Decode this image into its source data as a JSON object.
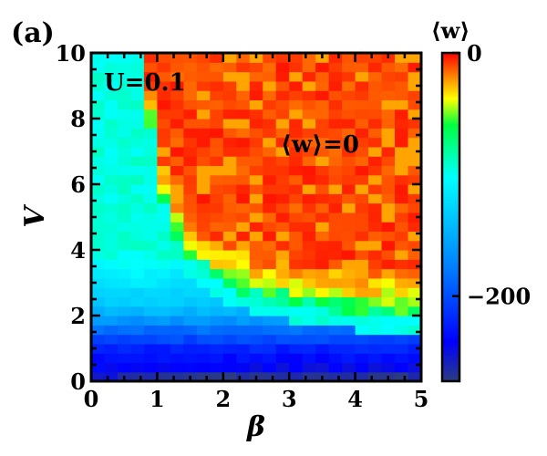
{
  "chart_data": {
    "type": "heatmap",
    "panel_label": "(a)",
    "xlabel": "β",
    "ylabel": "V",
    "xlim": [
      0,
      5
    ],
    "ylim": [
      0,
      10
    ],
    "x_ticks": [
      0,
      1,
      2,
      3,
      4,
      5
    ],
    "y_ticks": [
      0,
      2,
      4,
      6,
      8,
      10
    ],
    "grid": false,
    "annotations": [
      {
        "text": "U=0.1",
        "x": 0.2,
        "y": 9.1
      },
      {
        "text": "⟨w⟩=0",
        "x": 2.95,
        "y": 7.1
      }
    ],
    "nx": 25,
    "ny": 35,
    "phase_boundary": {
      "x0": 0.55,
      "a": 2.2,
      "b": 1.75
    },
    "colorbar": {
      "title": "⟨w⟩",
      "range": [
        -270,
        0
      ],
      "tick_labels": [
        {
          "value": 0,
          "text": "0"
        },
        {
          "value": -200,
          "text": "−200"
        }
      ],
      "colors": [
        "#2b3c80",
        "#0000ff",
        "#0080ff",
        "#00ffff",
        "#00ff40",
        "#ffff00",
        "#ff8000",
        "#ff0000"
      ]
    }
  }
}
